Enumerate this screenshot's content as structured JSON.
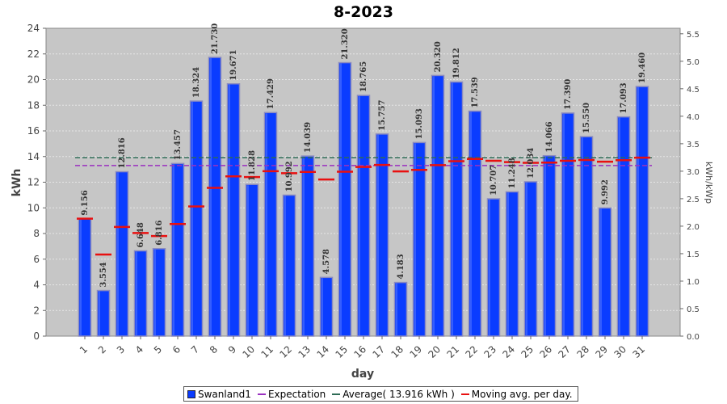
{
  "chart_data": {
    "type": "bar",
    "title": "8-2023",
    "xlabel": "day",
    "ylabel": "kWh",
    "ylabel_right": "kWh/kWp",
    "ylim": [
      0,
      24
    ],
    "y_ticks": [
      "0",
      "2",
      "4",
      "6",
      "8",
      "10",
      "12",
      "14",
      "16",
      "18",
      "20",
      "22",
      "24"
    ],
    "ylim_right": [
      0,
      5.6
    ],
    "y_ticks_right": [
      "0.0",
      "0.5",
      "1.0",
      "1.5",
      "2.0",
      "2.5",
      "3.0",
      "3.5",
      "4.0",
      "4.5",
      "5.0",
      "5.5"
    ],
    "grid": true,
    "legend_position": "bottom",
    "categories": [
      "1",
      "2",
      "3",
      "4",
      "5",
      "6",
      "7",
      "8",
      "9",
      "10",
      "11",
      "12",
      "13",
      "14",
      "15",
      "16",
      "17",
      "18",
      "19",
      "20",
      "21",
      "22",
      "23",
      "24",
      "25",
      "26",
      "27",
      "28",
      "29",
      "30",
      "31"
    ],
    "series": [
      {
        "name": "Swanland1",
        "type": "bar",
        "color": "#0a3cff",
        "values": [
          9.156,
          3.554,
          12.816,
          6.648,
          6.816,
          13.457,
          18.324,
          21.73,
          19.671,
          11.828,
          17.429,
          10.992,
          14.039,
          4.578,
          21.32,
          18.765,
          15.757,
          4.183,
          15.093,
          20.32,
          19.812,
          17.539,
          10.707,
          11.248,
          12.034,
          14.066,
          17.39,
          15.55,
          9.992,
          17.093,
          19.46
        ],
        "labels": [
          "9.156",
          "3.554",
          "12.816",
          "6.648",
          "6.816",
          "13.457",
          "18.324",
          "21.730",
          "19.671",
          "11.828",
          "17.429",
          "10.992",
          "14.039",
          "4.578",
          "21.320",
          "18.765",
          "15.757",
          "4.183",
          "15.093",
          "20.320",
          "19.812",
          "17.539",
          "10.707",
          "11.248",
          "12.034",
          "14.066",
          "17.390",
          "15.550",
          "9.992",
          "17.093",
          "19.460"
        ]
      },
      {
        "name": "Expectation",
        "type": "hline",
        "color": "#9a30c0",
        "value": 13.3
      },
      {
        "name": "Average( 13.916 kWh )",
        "type": "hline",
        "color": "#2e6b55",
        "value": 13.916
      },
      {
        "name": "Moving avg. per day.",
        "type": "step",
        "color": "#e81010",
        "values": [
          9.16,
          6.36,
          8.51,
          8.04,
          7.8,
          8.74,
          10.11,
          11.56,
          12.46,
          12.4,
          12.86,
          12.7,
          12.8,
          12.21,
          12.82,
          13.19,
          13.35,
          12.84,
          12.96,
          13.33,
          13.64,
          13.81,
          13.67,
          13.57,
          13.51,
          13.53,
          13.67,
          13.73,
          13.6,
          13.72,
          13.91
        ]
      }
    ]
  }
}
